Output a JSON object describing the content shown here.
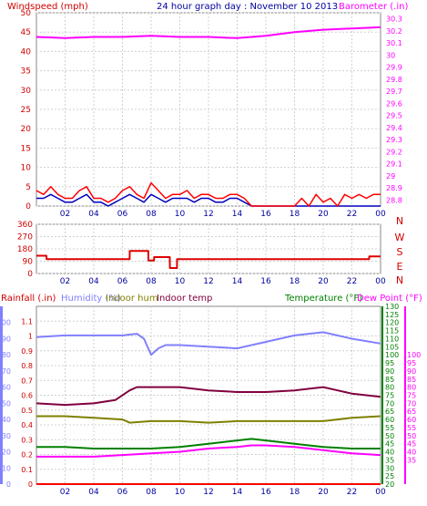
{
  "page_title": "24 hour graph day : November 10 2013",
  "colors": {
    "wind_avg": "#0000c0",
    "wind_gust": "#ff0000",
    "barometer": "#ff00ff",
    "wind_dir": "#dd0000",
    "rainfall": "#ff0000",
    "humidity": "#8080ff",
    "indoor_hum": "#808000",
    "indoor_temp": "#800040",
    "temperature": "#008000",
    "dew_point": "#ff00ff",
    "axis_left": "#d00000",
    "axis_right_temp": "#008000",
    "axis_right_dew": "#ff00ff",
    "axis_humidity": "#8080ff"
  },
  "chart_data": [
    {
      "type": "line",
      "title": "24 hour graph day : November 10 2013",
      "xlabel": "",
      "x_ticks": [
        "02",
        "04",
        "06",
        "08",
        "10",
        "12",
        "14",
        "16",
        "18",
        "20",
        "22",
        "00"
      ],
      "ylabel": "Windspeed (mph)",
      "ylim": [
        0,
        50
      ],
      "y_ticks": [
        0,
        5,
        10,
        15,
        20,
        25,
        30,
        35,
        40,
        45,
        50
      ],
      "y2label": "Barometer (.in)",
      "y2lim": [
        28.75,
        30.35
      ],
      "y2_ticks": [
        "28.8",
        "28.9",
        "29",
        "29.1",
        "29.2",
        "29.3",
        "29.4",
        "29.5",
        "29.6",
        "29.7",
        "29.8",
        "29.9",
        "30",
        "30.1",
        "30.2",
        "30.3"
      ],
      "series": [
        {
          "name": "Barometer (.in)",
          "axis": "right",
          "hours": [
            0,
            2,
            4,
            6,
            8,
            10,
            12,
            14,
            15,
            16,
            18,
            20,
            22,
            24
          ],
          "values": [
            30.15,
            30.14,
            30.15,
            30.15,
            30.16,
            30.15,
            30.15,
            30.14,
            30.15,
            30.16,
            30.19,
            30.21,
            30.22,
            30.23
          ]
        },
        {
          "name": "Windspeed (mph)",
          "axis": "left",
          "hours": [
            0,
            0.5,
            1,
            1.5,
            2,
            2.5,
            3,
            3.5,
            4,
            4.5,
            5,
            5.5,
            6,
            6.5,
            7,
            7.5,
            8,
            8.5,
            9,
            9.5,
            10,
            10.5,
            11,
            11.5,
            12,
            12.5,
            13,
            13.5,
            14,
            14.5,
            15,
            16,
            17,
            18,
            19,
            20,
            21,
            22,
            23,
            24
          ],
          "values": [
            2,
            2,
            3,
            2,
            1,
            1,
            2,
            3,
            1,
            1,
            0,
            1,
            2,
            3,
            2,
            1,
            3,
            2,
            1,
            2,
            2,
            2,
            1,
            2,
            2,
            1,
            1,
            2,
            2,
            1,
            0,
            0,
            0,
            0,
            0,
            0,
            0,
            0,
            0,
            0
          ]
        },
        {
          "name": "Wind gust (mph)",
          "axis": "left",
          "hours": [
            0,
            0.5,
            1,
            1.5,
            2,
            2.5,
            3,
            3.5,
            4,
            4.5,
            5,
            5.5,
            6,
            6.5,
            7,
            7.5,
            8,
            8.5,
            9,
            9.5,
            10,
            10.5,
            11,
            11.5,
            12,
            12.5,
            13,
            13.5,
            14,
            14.5,
            15,
            16,
            17,
            18,
            18.5,
            19,
            19.5,
            20,
            20.5,
            21,
            21.5,
            22,
            22.5,
            23,
            23.5,
            24
          ],
          "values": [
            4,
            3,
            5,
            3,
            2,
            2,
            4,
            5,
            2,
            2,
            1,
            2,
            4,
            5,
            3,
            2,
            6,
            4,
            2,
            3,
            3,
            4,
            2,
            3,
            3,
            2,
            2,
            3,
            3,
            2,
            0,
            0,
            0,
            0,
            2,
            0,
            3,
            1,
            2,
            0,
            3,
            2,
            3,
            2,
            3,
            3
          ]
        }
      ]
    },
    {
      "type": "line",
      "title": "",
      "ylabel": "",
      "ylim": [
        0,
        360
      ],
      "y_ticks": [
        0,
        90,
        180,
        270,
        360
      ],
      "y2_labels": [
        "N",
        "W",
        "S",
        "E",
        "N"
      ],
      "x_ticks": [
        "02",
        "04",
        "06",
        "08",
        "10",
        "12",
        "14",
        "16",
        "18",
        "20",
        "22",
        "00"
      ],
      "series": [
        {
          "name": "Wind direction",
          "hours": [
            0,
            0.7,
            0.71,
            6.5,
            6.51,
            7.8,
            7.81,
            8.2,
            8.21,
            9.3,
            9.31,
            9.8,
            9.81,
            10.2,
            10.21,
            23.2,
            23.21,
            24
          ],
          "values": [
            130,
            130,
            105,
            105,
            165,
            165,
            95,
            95,
            120,
            120,
            40,
            40,
            105,
            105,
            105,
            105,
            125,
            125
          ]
        }
      ]
    },
    {
      "type": "line",
      "title": "",
      "series_labels": [
        "Rainfall (.in)",
        "Humidity (%)",
        "Indoor hum",
        "Indoor temp",
        "Temperature (°F)",
        "Dew Point (°F)"
      ],
      "ylabel": "Rainfall (.in)",
      "ylim": [
        0,
        1.2
      ],
      "y_ticks": [
        "0",
        "0.1",
        "0.2",
        "0.3",
        "0.4",
        "0.5",
        "0.6",
        "0.7",
        "0.8",
        "0.9",
        "1",
        "1.1"
      ],
      "humidity_ticks": [
        0,
        10,
        20,
        30,
        40,
        50,
        60,
        70,
        80,
        90,
        100
      ],
      "temp_ticks": [
        20,
        25,
        30,
        35,
        40,
        45,
        50,
        55,
        60,
        65,
        70,
        75,
        80,
        85,
        90,
        95,
        100,
        105,
        110,
        115,
        120,
        125,
        130
      ],
      "dew_ticks": [
        35,
        40,
        45,
        50,
        55,
        60,
        65,
        70,
        75,
        80,
        85,
        90,
        95,
        100
      ],
      "x_ticks": [
        "02",
        "04",
        "06",
        "08",
        "10",
        "12",
        "14",
        "16",
        "18",
        "20",
        "22",
        "00"
      ],
      "series": [
        {
          "name": "Humidity (%)",
          "axis": "humidity",
          "hours": [
            0,
            2,
            4,
            6,
            7,
            7.5,
            8,
            8.5,
            9,
            10,
            12,
            14,
            16,
            18,
            20,
            22,
            24
          ],
          "values": [
            91,
            92,
            92,
            92,
            93,
            90,
            80,
            84,
            86,
            86,
            85,
            84,
            88,
            92,
            94,
            90,
            87
          ]
        },
        {
          "name": "Indoor temp",
          "axis": "temp",
          "hours": [
            0,
            2,
            4,
            5.5,
            6.5,
            7,
            8,
            10,
            12,
            14,
            16,
            18,
            19,
            20,
            21,
            22,
            24
          ],
          "values": [
            70,
            69,
            70,
            72,
            78,
            80,
            80,
            80,
            78,
            77,
            77,
            78,
            79,
            80,
            78,
            76,
            74
          ]
        },
        {
          "name": "Indoor hum",
          "axis": "temp",
          "hours": [
            0,
            2,
            4,
            6,
            6.5,
            8,
            10,
            12,
            14,
            16,
            18,
            20,
            22,
            24
          ],
          "values": [
            62,
            62,
            61,
            60,
            58,
            59,
            59,
            58,
            59,
            59,
            59,
            59,
            61,
            62
          ]
        },
        {
          "name": "Temperature (°F)",
          "axis": "temp",
          "hours": [
            0,
            2,
            4,
            6,
            8,
            10,
            12,
            14,
            15,
            16,
            18,
            20,
            22,
            24
          ],
          "values": [
            43,
            43,
            42,
            42,
            42,
            43,
            45,
            47,
            48,
            47,
            45,
            43,
            42,
            42
          ]
        },
        {
          "name": "Dew Point (°F)",
          "axis": "temp",
          "hours": [
            0,
            2,
            4,
            6,
            8,
            10,
            12,
            14,
            15,
            16,
            18,
            20,
            22,
            24
          ],
          "values": [
            37,
            37,
            37,
            38,
            39,
            40,
            42,
            43,
            44,
            44,
            43,
            41,
            39,
            38
          ]
        },
        {
          "name": "Rainfall (.in)",
          "axis": "left",
          "hours": [
            0,
            24
          ],
          "values": [
            0,
            0
          ]
        }
      ]
    }
  ],
  "panel1_labels": {
    "left": "Windspeed (mph)",
    "title": "24 hour graph day : November 10 2013",
    "right": "Barometer (.in)"
  },
  "panel2_labels": {
    "right": [
      "N",
      "W",
      "S",
      "E",
      "N"
    ]
  },
  "panel3_labels": {
    "rain": "Rainfall (.in)",
    "humidity": "Humidity (%)",
    "indoor_hum": "Indoor hum",
    "indoor_temp": "Indoor temp",
    "temperature": "Temperature (°F)",
    "dew": "Dew Point (°F)"
  }
}
